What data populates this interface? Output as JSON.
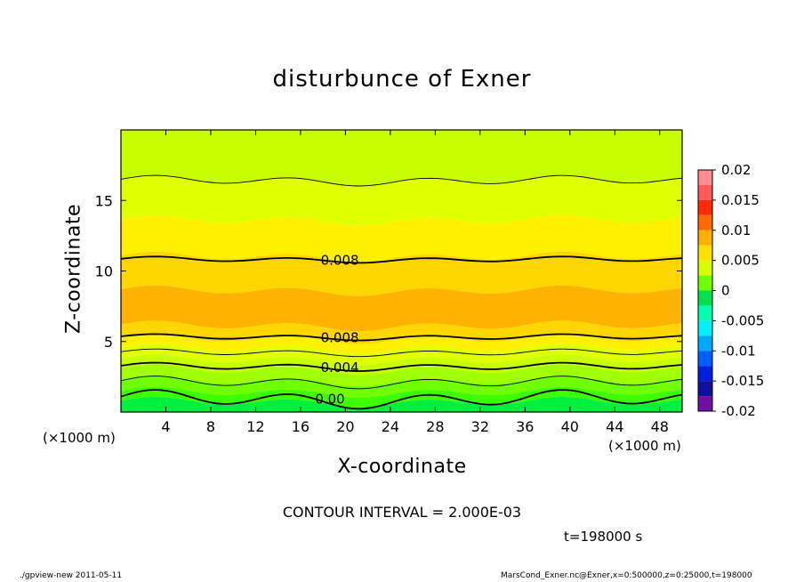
{
  "chart_data": {
    "type": "heatmap",
    "title": "disturbunce of Exner",
    "xlabel": "X-coordinate",
    "ylabel": "Z-coordinate",
    "x_unit": "(×1000 m)",
    "xlim": [
      0,
      50
    ],
    "ylim": [
      0,
      20
    ],
    "x_ticks": [
      4,
      8,
      12,
      16,
      20,
      24,
      28,
      32,
      36,
      40,
      44,
      48
    ],
    "y_ticks": [
      5,
      10,
      15
    ],
    "colorbar": {
      "ticks": [
        "0.02",
        "0.015",
        "0.01",
        "0.005",
        "0",
        "-0.005",
        "-0.01",
        "-0.015",
        "-0.02"
      ],
      "range": [
        -0.02,
        0.02
      ],
      "levels": [
        {
          "from": 0.0175,
          "to": 0.02,
          "color": "#ff8c8c"
        },
        {
          "from": 0.015,
          "to": 0.0175,
          "color": "#ff5a5a"
        },
        {
          "from": 0.0125,
          "to": 0.015,
          "color": "#ff2a00"
        },
        {
          "from": 0.01,
          "to": 0.0125,
          "color": "#ff6a00"
        },
        {
          "from": 0.0075,
          "to": 0.01,
          "color": "#ffb000"
        },
        {
          "from": 0.005,
          "to": 0.0075,
          "color": "#ffe000"
        },
        {
          "from": 0.0025,
          "to": 0.005,
          "color": "#d8ff00"
        },
        {
          "from": 0.0,
          "to": 0.0025,
          "color": "#70ff00"
        },
        {
          "from": -0.0025,
          "to": 0.0,
          "color": "#00e050"
        },
        {
          "from": -0.005,
          "to": -0.0025,
          "color": "#00ffb0"
        },
        {
          "from": -0.0075,
          "to": -0.005,
          "color": "#00f0ff"
        },
        {
          "from": -0.01,
          "to": -0.0075,
          "color": "#00a8ff"
        },
        {
          "from": -0.0125,
          "to": -0.01,
          "color": "#0060ff"
        },
        {
          "from": -0.015,
          "to": -0.0125,
          "color": "#0020e0"
        },
        {
          "from": -0.0175,
          "to": -0.015,
          "color": "#1010a0"
        },
        {
          "from": -0.02,
          "to": -0.0175,
          "color": "#7010a0"
        }
      ]
    },
    "field_bands": [
      {
        "z_top": 20,
        "z_bottom": 16.4,
        "value": 0.004,
        "color": "#c8ff00"
      },
      {
        "z_top": 16.4,
        "z_bottom": 13.6,
        "value": 0.0055,
        "color": "#e0ff00"
      },
      {
        "z_top": 13.6,
        "z_bottom": 11.0,
        "value": 0.0068,
        "color": "#fff000"
      },
      {
        "z_top": 11.0,
        "z_bottom": 8.6,
        "value": 0.0082,
        "color": "#ffd600"
      },
      {
        "z_top": 8.6,
        "z_bottom": 6.1,
        "value": 0.0092,
        "color": "#ffb300"
      },
      {
        "z_top": 6.1,
        "z_bottom": 5.2,
        "value": 0.0082,
        "color": "#ffd600"
      },
      {
        "z_top": 5.2,
        "z_bottom": 4.5,
        "value": 0.0068,
        "color": "#fff000"
      },
      {
        "z_top": 4.5,
        "z_bottom": 3.7,
        "value": 0.0055,
        "color": "#e0ff00"
      },
      {
        "z_top": 3.7,
        "z_bottom": 3.0,
        "value": 0.004,
        "color": "#c8ff00"
      },
      {
        "z_top": 3.0,
        "z_bottom": 2.2,
        "value": 0.003,
        "color": "#a0ff00"
      },
      {
        "z_top": 2.2,
        "z_bottom": 1.4,
        "value": 0.002,
        "color": "#70ff00"
      },
      {
        "z_top": 1.4,
        "z_bottom": 0.7,
        "value": 0.001,
        "color": "#3cff00"
      },
      {
        "z_top": 0.7,
        "z_bottom": 0.0,
        "value": -0.0005,
        "color": "#00f040"
      }
    ],
    "contours": [
      {
        "z": 16.4,
        "amp": 0.25,
        "label": "",
        "bold": false
      },
      {
        "z": 10.8,
        "amp": 0.15,
        "label": "0.008",
        "label_x": 17.8,
        "bold": true
      },
      {
        "z": 5.3,
        "amp": 0.15,
        "label": "0.008",
        "label_x": 17.8,
        "bold": true
      },
      {
        "z": 4.2,
        "amp": 0.18,
        "label": "",
        "bold": false
      },
      {
        "z": 3.2,
        "amp": 0.2,
        "label": "0.004",
        "label_x": 17.8,
        "bold": true
      },
      {
        "z": 2.1,
        "amp": 0.3,
        "label": "",
        "bold": false
      },
      {
        "z": 0.9,
        "amp": 0.45,
        "label": "0.00",
        "label_x": 17.3,
        "bold": true
      }
    ]
  },
  "footer": {
    "contour_interval": "CONTOUR INTERVAL = 2.000E-03",
    "time": "t=198000 s",
    "left": "./gpview-new  2011-05-11",
    "right": "MarsCond_Exner.nc@Exner,x=0:500000,z=0:25000,t=198000"
  },
  "colors": {
    "frame": "#000000",
    "background": "#ffffff"
  }
}
